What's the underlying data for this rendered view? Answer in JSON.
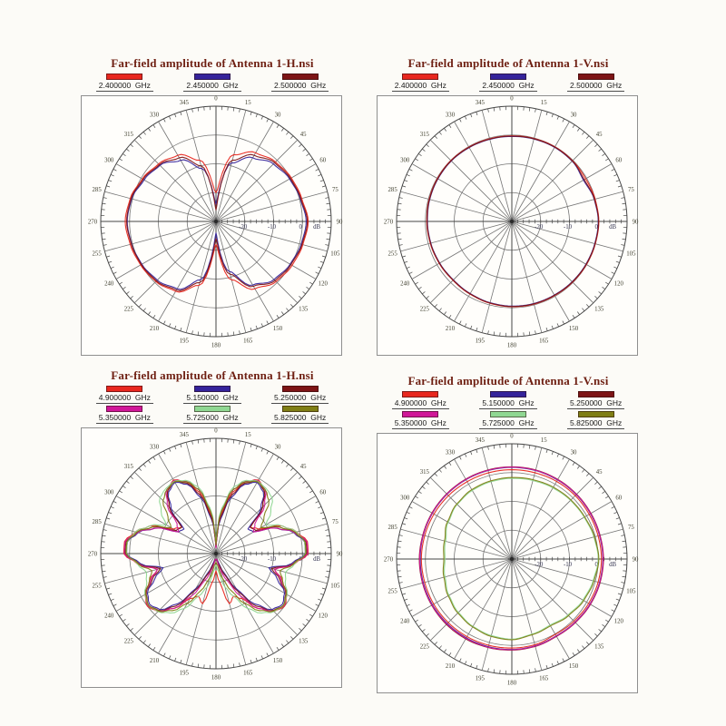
{
  "page": {
    "background": "#fcfbf7"
  },
  "styles": {
    "title_color": "#6e1f12",
    "frame_border": "#8f8f8f",
    "grid_color": "#757575",
    "axis_color": "#454545",
    "tick_color": "#4a4a4a",
    "angle_label_color": "#3d3d2c",
    "db_label_color": "#333350",
    "legend_text_color": "#1b1b1b",
    "center_dot_color": "#2a2a2a"
  },
  "polar_grid": {
    "center_db": -30,
    "outer_db": 10,
    "rings_db": [
      -20,
      -10,
      0,
      10
    ],
    "ring_labels": [
      "-20",
      "-10",
      "0"
    ],
    "unit_label": "dB",
    "angle_step_deg": 15,
    "minor_tick_deg": 3,
    "db_tick_step": 2,
    "angle_labels": [
      "0",
      "15",
      "30",
      "45",
      "60",
      "75",
      "90",
      "105",
      "120",
      "135",
      "150",
      "165",
      "180",
      "195",
      "210",
      "225",
      "240",
      "255",
      "270",
      "285",
      "300",
      "315",
      "330",
      "345"
    ]
  },
  "chart_data": [
    {
      "type": "polar-line",
      "title": "Far-field amplitude of Antenna 1-H.nsi",
      "radial_unit": "dB",
      "radial_range_db": [
        -30,
        10
      ],
      "legend_position": "top",
      "series": [
        {
          "name": "2.400000  GHz",
          "color": "#e8271f",
          "angle_step_deg": 15,
          "amplitude_db": [
            -20,
            -6,
            -2.5,
            -0.8,
            0.2,
            0.8,
            2,
            1.2,
            0.5,
            -0.5,
            -3,
            -9,
            -22,
            -7,
            -2,
            -0.5,
            0.2,
            0.8,
            1.5,
            0.8,
            -0.5,
            -1.8,
            -3.5,
            -8
          ]
        },
        {
          "name": "2.450000  GHz",
          "color": "#35239b",
          "angle_step_deg": 15,
          "amplitude_db": [
            -24,
            -9,
            -4.5,
            -1.8,
            -0.5,
            0.3,
            1.3,
            0.6,
            -0.3,
            -1.5,
            -4.5,
            -12,
            -26,
            -9,
            -3,
            -1.2,
            -0.3,
            0.3,
            0.8,
            0.3,
            -1.2,
            -2.5,
            -5.5,
            -11
          ]
        },
        {
          "name": "2.500000  GHz",
          "color": "#7d1416",
          "angle_step_deg": 15,
          "amplitude_db": [
            -26,
            -8,
            -3.5,
            -1.2,
            -0.2,
            0.5,
            1.7,
            0.9,
            0,
            -1,
            -4,
            -11,
            -24,
            -8,
            -2.5,
            -0.8,
            -0.1,
            0.4,
            1,
            0.5,
            -0.8,
            -2.2,
            -4.5,
            -10
          ]
        }
      ]
    },
    {
      "type": "polar-line",
      "title": "Far-field amplitude of Antenna 1-V.nsi",
      "radial_unit": "dB",
      "radial_range_db": [
        -30,
        10
      ],
      "legend_position": "top",
      "series": [
        {
          "name": "2.400000  GHz",
          "color": "#e8271f",
          "angle_step_deg": 15,
          "amplitude_db": [
            -0.3,
            -0.2,
            -0.1,
            -0.2,
            -0.4,
            -0.1,
            0.2,
            0,
            -0.1,
            -0.2,
            -0.3,
            -0.3,
            -0.4,
            -0.6,
            -0.9,
            -1.1,
            -0.9,
            -0.7,
            -0.5,
            -0.3,
            -0.2,
            -0.1,
            -0.2,
            -0.3
          ]
        },
        {
          "name": "2.450000  GHz",
          "color": "#35239b",
          "angle_step_deg": 15,
          "amplitude_db": [
            -0.5,
            -0.4,
            -0.3,
            -0.4,
            -1.3,
            -0.4,
            0,
            -0.2,
            -0.3,
            -0.4,
            -0.5,
            -0.5,
            -0.6,
            -0.8,
            -1.1,
            -1.3,
            -1.1,
            -0.9,
            -0.7,
            -0.5,
            -0.4,
            -0.3,
            -0.4,
            -0.5
          ]
        },
        {
          "name": "2.500000  GHz",
          "color": "#7d1416",
          "angle_step_deg": 15,
          "amplitude_db": [
            -0.4,
            -0.3,
            -0.2,
            -0.3,
            -1,
            -0.3,
            0.1,
            -0.1,
            -0.2,
            -0.3,
            -0.4,
            -0.4,
            -0.5,
            -0.7,
            -1,
            -1.2,
            -1,
            -0.8,
            -0.6,
            -0.4,
            -0.3,
            -0.2,
            -0.3,
            -0.4
          ]
        }
      ]
    },
    {
      "type": "polar-line",
      "title": "Far-field amplitude of Antenna 1-H.nsi",
      "radial_unit": "dB",
      "radial_range_db": [
        -30,
        10
      ],
      "legend_position": "top",
      "series": [
        {
          "name": "4.900000  GHz",
          "color": "#e8271f",
          "angle_step_deg": 7.5,
          "amplitude_db": [
            -28,
            -16,
            -8,
            -3,
            -0.5,
            -2.5,
            -7,
            -15,
            -13,
            -5,
            -1,
            2,
            2,
            -2.5,
            -9,
            -5,
            -1.5,
            0,
            -1.5,
            -6,
            -12,
            -14,
            -12,
            -20,
            -24,
            -20,
            -12,
            -14,
            -12,
            -6,
            -1.5,
            0,
            -1.5,
            -5,
            -9,
            -2.5,
            2,
            2,
            -1,
            -5,
            -13,
            -15,
            -7,
            -2.5,
            -0.5,
            -3,
            -8,
            -16
          ]
        },
        {
          "name": "5.150000  GHz",
          "color": "#35239b",
          "angle_step_deg": 7.5,
          "amplitude_db": [
            -28,
            -18,
            -10,
            -4,
            -1.5,
            -3,
            -8,
            -16,
            -15,
            -7,
            -2,
            1,
            1,
            -3.5,
            -11,
            -7,
            -2.5,
            -1,
            -2.5,
            -8,
            -16,
            -23,
            -27,
            -28,
            -28,
            -28,
            -27,
            -23,
            -16,
            -8,
            -2.5,
            -1,
            -2.5,
            -7,
            -11,
            -3.5,
            1,
            1,
            -2,
            -7,
            -15,
            -16,
            -8,
            -3,
            -1.5,
            -4,
            -10,
            -18
          ]
        },
        {
          "name": "5.250000  GHz",
          "color": "#7d1416",
          "angle_step_deg": 7.5,
          "amplitude_db": [
            -28,
            -17,
            -9,
            -3.5,
            -1,
            -2.5,
            -7,
            -15,
            -14,
            -6,
            -1.5,
            1.5,
            1.5,
            -3,
            -10,
            -6,
            -2,
            -0.5,
            -2,
            -7,
            -15,
            -22,
            -26,
            -28,
            -28,
            -28,
            -26,
            -22,
            -15,
            -7,
            -2,
            -0.5,
            -2,
            -6,
            -10,
            -3,
            1.5,
            1.5,
            -1.5,
            -6,
            -14,
            -15,
            -7,
            -2.5,
            -1,
            -3.5,
            -9,
            -17
          ]
        },
        {
          "name": "5.350000  GHz",
          "color": "#d01798",
          "angle_step_deg": 7.5,
          "amplitude_db": [
            -28,
            -15,
            -7,
            -2.8,
            -0.8,
            -2,
            -6,
            -13,
            -15,
            -7,
            -1.8,
            1.8,
            1.8,
            -2.8,
            -9,
            -5.5,
            -1.8,
            -0.3,
            -1.8,
            -6,
            -13,
            -20,
            -24,
            -28,
            -28,
            -28,
            -24,
            -20,
            -13,
            -6,
            -1.8,
            -0.3,
            -1.8,
            -5.5,
            -9,
            -2.8,
            1.8,
            1.8,
            -1.8,
            -7,
            -15,
            -13,
            -6,
            -2,
            -0.8,
            -2.8,
            -7,
            -15
          ]
        },
        {
          "name": "5.725000  GHz",
          "color": "#8fd792",
          "angle_step_deg": 7.5,
          "amplitude_db": [
            -26,
            -14,
            -6,
            -2.5,
            -1,
            -1.5,
            -2.5,
            -6,
            -10,
            -5,
            -1,
            1,
            1,
            -2.5,
            -5,
            -4,
            -1.5,
            -0.5,
            -1.5,
            -4,
            -8,
            -14,
            -18,
            -24,
            -26,
            -24,
            -18,
            -14,
            -8,
            -4,
            -1.5,
            -0.5,
            -1.5,
            -4,
            -5,
            -2.5,
            1,
            1,
            -1,
            -5,
            -10,
            -6,
            -2.5,
            -1.5,
            -1,
            -2.5,
            -6,
            -14
          ]
        },
        {
          "name": "5.825000  GHz",
          "color": "#7f7e15",
          "angle_step_deg": 7.5,
          "amplitude_db": [
            -27,
            -15,
            -7,
            -3,
            -1.2,
            -2,
            -4,
            -9,
            -12,
            -6,
            -1.5,
            1.2,
            1.2,
            -2.8,
            -7,
            -5,
            -1.8,
            -0.5,
            -1.8,
            -5,
            -10,
            -16,
            -21,
            -26,
            -27,
            -26,
            -21,
            -16,
            -10,
            -5,
            -1.8,
            -0.5,
            -1.8,
            -5,
            -7,
            -2.8,
            1.2,
            1.2,
            -1.5,
            -6,
            -12,
            -9,
            -4,
            -2,
            -1.2,
            -3,
            -7,
            -15
          ]
        }
      ]
    },
    {
      "type": "polar-line",
      "title": "Far-field amplitude of Antenna 1-V.nsi",
      "radial_unit": "dB",
      "radial_range_db": [
        -30,
        10
      ],
      "legend_position": "top",
      "series": [
        {
          "name": "4.900000  GHz",
          "color": "#e8271f",
          "angle_step_deg": 15,
          "amplitude_db": [
            1,
            1,
            1.1,
            1.1,
            1,
            1,
            1.1,
            1,
            0.8,
            0.5,
            0.2,
            0.8,
            0.9,
            1,
            1.1,
            1.2,
            1.3,
            1.3,
            1.4,
            1.3,
            1.2,
            1.1,
            1,
            1
          ]
        },
        {
          "name": "5.150000  GHz",
          "color": "#35239b",
          "angle_step_deg": 15,
          "amplitude_db": [
            1.8,
            1.8,
            1.7,
            1.6,
            1.5,
            1.5,
            1.6,
            1.5,
            1.3,
            1,
            0.8,
            1.2,
            1.4,
            1.5,
            1.6,
            1.7,
            1.8,
            1.8,
            1.8,
            1.8,
            1.8,
            1.8,
            1.8,
            1.8
          ]
        },
        {
          "name": "5.250000  GHz",
          "color": "#7d1416",
          "angle_step_deg": 15,
          "amplitude_db": [
            2,
            2,
            1.9,
            1.8,
            1.7,
            1.7,
            1.8,
            1.7,
            1.5,
            1.2,
            1,
            1.4,
            1.6,
            1.8,
            2,
            2.1,
            2.1,
            2.1,
            2.1,
            2,
            2,
            2,
            2,
            2
          ]
        },
        {
          "name": "5.350000  GHz",
          "color": "#d01798",
          "angle_step_deg": 15,
          "amplitude_db": [
            1.9,
            1.9,
            1.8,
            1.7,
            1.6,
            1.6,
            1.7,
            1.6,
            1.4,
            1.1,
            0.9,
            1.3,
            1.5,
            1.7,
            1.8,
            1.9,
            2,
            2,
            2,
            1.9,
            1.9,
            1.9,
            1.9,
            1.9
          ]
        },
        {
          "name": "5.725000  GHz",
          "color": "#8fd792",
          "angle_step_deg": 15,
          "amplitude_db": [
            -2,
            -1.8,
            -1.5,
            -1.2,
            -1,
            -0.5,
            0,
            -0.8,
            -1.5,
            -2.5,
            -3.5,
            -3,
            -2.2,
            -2.5,
            -3,
            -3.8,
            -4.8,
            -6,
            -6.8,
            -6.2,
            -4.5,
            -3.2,
            -2.5,
            -2.2
          ]
        },
        {
          "name": "5.825000  GHz",
          "color": "#7f7e15",
          "angle_step_deg": 15,
          "amplitude_db": [
            -1.7,
            -1.5,
            -1.2,
            -1,
            -0.8,
            -0.3,
            0.2,
            -0.5,
            -1.2,
            -2.2,
            -3.2,
            -2.8,
            -2,
            -2.2,
            -2.8,
            -3.5,
            -4.5,
            -5.6,
            -6.4,
            -5.8,
            -4.2,
            -3,
            -2.2,
            -1.9
          ]
        }
      ]
    }
  ]
}
